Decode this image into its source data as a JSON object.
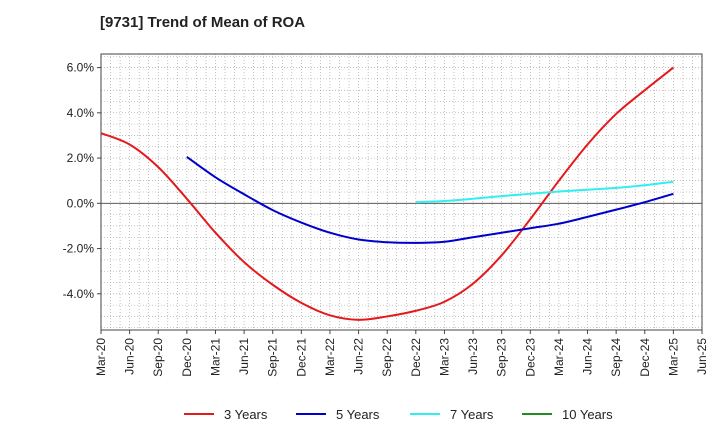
{
  "chart_data": {
    "type": "line",
    "title": "[9731]  Trend of Mean of ROA",
    "xlabel": "",
    "ylabel": "",
    "x": [
      "Mar-20",
      "Jun-20",
      "Sep-20",
      "Dec-20",
      "Mar-21",
      "Jun-21",
      "Sep-21",
      "Dec-21",
      "Mar-22",
      "Jun-22",
      "Sep-22",
      "Dec-22",
      "Mar-23",
      "Jun-23",
      "Sep-23",
      "Dec-23",
      "Mar-24",
      "Jun-24",
      "Sep-24",
      "Dec-24",
      "Mar-25",
      "Jun-25"
    ],
    "ylim": [
      -5.6,
      6.6
    ],
    "yticks": [
      -4.0,
      -2.0,
      0.0,
      2.0,
      4.0,
      6.0
    ],
    "ytick_labels": [
      "-4.0%",
      "-2.0%",
      "0.0%",
      "2.0%",
      "4.0%",
      "6.0%"
    ],
    "grid": true,
    "legend_position": "bottom",
    "series": [
      {
        "name": "3 Years",
        "color": "#e31a1c",
        "values": [
          3.1,
          2.6,
          1.6,
          0.2,
          -1.3,
          -2.6,
          -3.6,
          -4.4,
          -4.95,
          -5.15,
          -5.0,
          -4.75,
          -4.35,
          -3.55,
          -2.3,
          -0.7,
          1.0,
          2.6,
          3.95,
          5.0,
          6.0,
          null
        ]
      },
      {
        "name": "5 Years",
        "color": "#0000cc",
        "values": [
          null,
          null,
          null,
          2.05,
          1.15,
          0.4,
          -0.3,
          -0.85,
          -1.3,
          -1.6,
          -1.72,
          -1.75,
          -1.7,
          -1.5,
          -1.3,
          -1.1,
          -0.9,
          -0.6,
          -0.28,
          0.05,
          0.42,
          null
        ]
      },
      {
        "name": "7 Years",
        "color": "#33eeee",
        "values": [
          null,
          null,
          null,
          null,
          null,
          null,
          null,
          null,
          null,
          null,
          null,
          0.05,
          0.1,
          0.2,
          0.32,
          0.42,
          0.52,
          0.6,
          0.68,
          0.8,
          0.95,
          null
        ]
      },
      {
        "name": "10 Years",
        "color": "#228b22",
        "values": [
          null,
          null,
          null,
          null,
          null,
          null,
          null,
          null,
          null,
          null,
          null,
          null,
          null,
          null,
          null,
          null,
          null,
          null,
          null,
          null,
          null,
          null
        ]
      }
    ]
  }
}
